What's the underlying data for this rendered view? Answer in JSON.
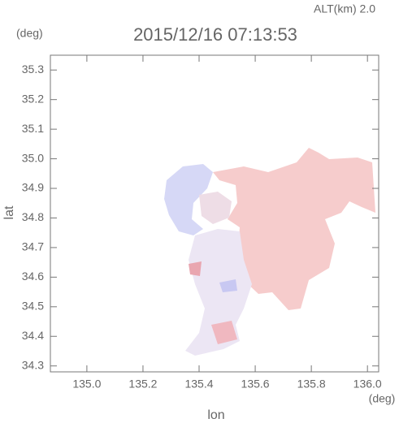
{
  "chart_data": {
    "type": "field",
    "title": "2015/12/16 07:13:53",
    "altitude_label": "ALT(km) 2.0",
    "y_unit": "(deg)",
    "x_unit": "(deg)",
    "xlabel": "lon",
    "ylabel": "lat",
    "xlim": [
      134.87,
      136.04
    ],
    "xticks": [
      {
        "value": 135.0,
        "label": "135.0"
      },
      135.2,
      135.4,
      135.6,
      135.8,
      {
        "value": 136.0,
        "label": "136.0"
      }
    ],
    "ylim": [
      34.28,
      35.35
    ],
    "yticks": [
      34.3,
      34.4,
      34.5,
      34.6,
      34.7,
      34.8,
      34.9,
      {
        "value": 35.0,
        "label": "35.0"
      },
      35.1,
      35.2,
      35.3
    ]
  }
}
